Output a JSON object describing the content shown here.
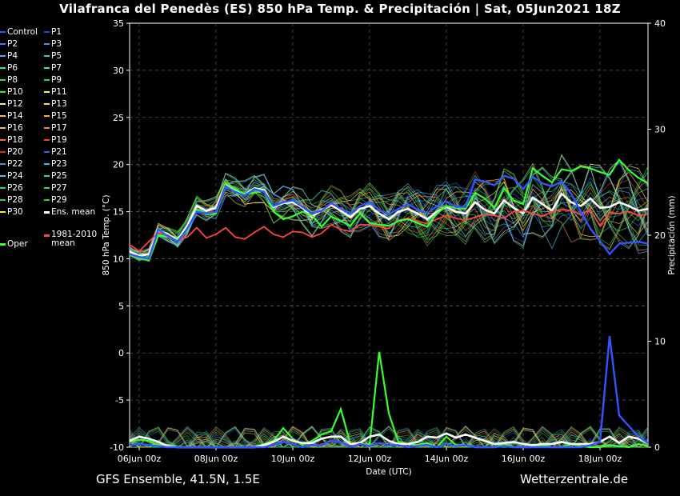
{
  "header": {
    "title": "Vilafranca del Penedès  (ES)  850 hPa Temp. & Precipitación | Sat, 05Jun2021 18Z"
  },
  "footer": {
    "model": "GFS Ensemble, 41.5N, 1.5E",
    "source": "Wetterzentrale.de"
  },
  "legend": [
    {
      "label": "Control",
      "color": "#3355ff"
    },
    {
      "label": "P1",
      "color": "#2244ee"
    },
    {
      "label": "P2",
      "color": "#4477ff"
    },
    {
      "label": "P3",
      "color": "#3399ff"
    },
    {
      "label": "P4",
      "color": "#44aaff"
    },
    {
      "label": "P5",
      "color": "#33ccdd"
    },
    {
      "label": "P6",
      "color": "#33ddbb"
    },
    {
      "label": "P7",
      "color": "#33ee99"
    },
    {
      "label": "P8",
      "color": "#33dd66"
    },
    {
      "label": "P9",
      "color": "#22dd33"
    },
    {
      "label": "P10",
      "color": "#33ee22"
    },
    {
      "label": "P11",
      "color": "#ffff44"
    },
    {
      "label": "P12",
      "color": "#ffee88"
    },
    {
      "label": "P13",
      "color": "#ffdd66"
    },
    {
      "label": "P14",
      "color": "#ffbb44"
    },
    {
      "label": "P15",
      "color": "#ffaa22"
    },
    {
      "label": "P16",
      "color": "#ffaa77"
    },
    {
      "label": "P17",
      "color": "#ff8844"
    },
    {
      "label": "P18",
      "color": "#ff6633"
    },
    {
      "label": "P19",
      "color": "#ee4422"
    },
    {
      "label": "P20",
      "color": "#dd3322"
    },
    {
      "label": "P21",
      "color": "#3366ee"
    },
    {
      "label": "P22",
      "color": "#3399ee"
    },
    {
      "label": "P23",
      "color": "#33bbff"
    },
    {
      "label": "P24",
      "color": "#44ccdd"
    },
    {
      "label": "P25",
      "color": "#33ddaa"
    },
    {
      "label": "P26",
      "color": "#33cc88"
    },
    {
      "label": "P27",
      "color": "#33dd66"
    },
    {
      "label": "P28",
      "color": "#33cc44"
    },
    {
      "label": "P29",
      "color": "#22dd22"
    },
    {
      "label": "P30",
      "color": "#ffee33"
    },
    {
      "label": "Ens. mean",
      "color": "#ffffff"
    },
    {
      "label": "Oper",
      "color": "#33ff33"
    },
    {
      "label": "1981-2010 mean",
      "color": "#ff4444"
    }
  ],
  "chart_data": {
    "type": "line",
    "title": "Vilafranca del Penedès  (ES)  850 hPa Temp. & Precipitación | Sat, 05Jun2021 18Z",
    "xlabel": "Date (UTC)",
    "ylabel": "850 hPa Temp. (°C)",
    "y2label": "Precipitación (mm)",
    "ylim": [
      -10,
      35
    ],
    "y2lim": [
      0,
      40
    ],
    "yticks": [
      "35",
      "30",
      "25",
      "20",
      "15",
      "10",
      "5",
      "0",
      "-5",
      "-10"
    ],
    "y2ticks": [
      "40",
      "30",
      "20",
      "10",
      "0"
    ],
    "xticks": [
      "06Jun 00z",
      "08Jun 00z",
      "10Jun 00z",
      "12Jun 00z",
      "14Jun 00z",
      "16Jun 00z",
      "18Jun 00z"
    ],
    "x_hours": [
      -6,
      0,
      6,
      12,
      18,
      24,
      30,
      36,
      42,
      48,
      54,
      60,
      66,
      72,
      78,
      84,
      90,
      96,
      102,
      108,
      114,
      120,
      126,
      132,
      138,
      144,
      150,
      156,
      162,
      168,
      174,
      180,
      186,
      192,
      198,
      204,
      210,
      216,
      222,
      228,
      234,
      240,
      246,
      252,
      258,
      264,
      270,
      276,
      282,
      288,
      294,
      300,
      306,
      312,
      318
    ],
    "grid": true,
    "series": [
      {
        "name": "Ens. mean",
        "axis": "temp",
        "values": [
          10.8,
          10.3,
          10.5,
          13.0,
          12.6,
          12.0,
          13.5,
          15.6,
          15.1,
          15.4,
          17.8,
          17.3,
          16.8,
          17.5,
          17.3,
          15.5,
          15.9,
          16.0,
          15.4,
          14.4,
          15.2,
          15.7,
          15.1,
          14.4,
          15.3,
          15.6,
          14.8,
          14.2,
          15.0,
          15.3,
          14.8,
          14.2,
          15.0,
          15.5,
          15.0,
          14.8,
          16.0,
          15.2,
          14.8,
          16.2,
          15.4,
          14.8,
          16.5,
          15.8,
          15.1,
          16.9,
          16.0,
          15.6,
          16.4,
          15.4,
          15.5,
          16.0,
          15.6,
          15.1,
          15.3
        ]
      },
      {
        "name": "1981-2010 mean",
        "axis": "temp",
        "values": [
          11.5,
          10.8,
          11.8,
          12.8,
          12.5,
          11.9,
          12.3,
          13.3,
          12.2,
          12.6,
          13.3,
          12.3,
          12.1,
          12.8,
          13.4,
          12.6,
          12.3,
          12.9,
          12.8,
          12.3,
          12.7,
          13.6,
          13.1,
          12.9,
          13.6,
          13.6,
          13.4,
          13.2,
          14.1,
          14.3,
          14.0,
          13.7,
          14.2,
          14.6,
          14.3,
          14.1,
          14.4,
          14.7,
          14.6,
          14.3,
          15.0,
          15.1,
          14.8,
          14.5,
          15.0,
          15.2,
          15.1,
          14.7,
          15.2,
          13.5,
          14.9,
          14.8,
          15.0,
          14.6,
          14.7
        ]
      },
      {
        "name": "Oper",
        "axis": "temp",
        "values": [
          10.4,
          10.1,
          9.8,
          12.5,
          12.3,
          12.0,
          13.0,
          15.2,
          14.7,
          14.8,
          18.0,
          17.4,
          16.9,
          17.0,
          17.2,
          15.0,
          14.2,
          14.5,
          15.0,
          14.6,
          13.4,
          14.5,
          14.0,
          13.5,
          14.8,
          13.8,
          13.6,
          13.5,
          14.0,
          14.2,
          13.8,
          13.4,
          14.8,
          15.6,
          15.4,
          15.3,
          17.0,
          16.4,
          15.4,
          17.5,
          16.2,
          15.8,
          19.6,
          18.8,
          18.1,
          19.5,
          19.3,
          19.8,
          19.6,
          19.2,
          18.9,
          20.5,
          19.4,
          18.6,
          18.0
        ]
      },
      {
        "name": "Control",
        "axis": "temp",
        "values": [
          10.5,
          10.2,
          10.0,
          13.1,
          12.4,
          11.8,
          13.2,
          15.0,
          14.8,
          15.0,
          17.7,
          17.1,
          16.7,
          17.4,
          17.1,
          15.6,
          16.0,
          16.2,
          15.5,
          14.8,
          15.1,
          15.9,
          15.3,
          14.8,
          15.6,
          16.0,
          15.2,
          14.7,
          15.3,
          15.8,
          15.2,
          14.8,
          15.6,
          16.1,
          15.5,
          15.5,
          18.4,
          18.2,
          17.8,
          18.8,
          18.5,
          17.4,
          18.7,
          18.0,
          17.7,
          18.2,
          16.9,
          15.0,
          13.2,
          11.9,
          10.5,
          11.6,
          11.7,
          11.8,
          11.6
        ]
      },
      {
        "name": "Oper",
        "axis": "precip",
        "values": [
          0.5,
          0.7,
          0.6,
          0.2,
          0.1,
          0.0,
          0.0,
          0.0,
          0.0,
          0.0,
          0.0,
          0.0,
          0.0,
          0.0,
          0.3,
          0.6,
          1.8,
          0.8,
          0.2,
          0.6,
          1.2,
          1.5,
          3.6,
          0.3,
          0.4,
          0.2,
          9.0,
          3.2,
          0.5,
          0.3,
          0.2,
          0.4,
          0.0,
          1.0,
          0.2,
          0.2,
          0.0,
          0.0,
          0.0,
          0.3,
          0.0,
          0.0,
          0.0,
          0.2,
          0.0,
          0.0,
          0.3,
          0.1,
          0.0,
          0.0,
          0.2,
          0.1,
          0.0,
          0.3,
          0.1
        ]
      },
      {
        "name": "Ens. mean",
        "axis": "precip",
        "values": [
          0.6,
          1.0,
          0.8,
          0.5,
          0.1,
          0.0,
          0.0,
          0.0,
          0.0,
          0.0,
          0.0,
          0.0,
          0.0,
          0.0,
          0.2,
          0.5,
          1.0,
          0.6,
          0.4,
          0.4,
          0.8,
          1.0,
          1.0,
          0.3,
          0.4,
          1.0,
          1.2,
          0.6,
          0.3,
          0.3,
          0.5,
          1.0,
          0.9,
          1.3,
          0.9,
          1.2,
          0.9,
          0.6,
          0.3,
          0.4,
          0.5,
          0.3,
          0.2,
          0.3,
          0.3,
          0.5,
          0.3,
          0.3,
          0.3,
          0.5,
          1.0,
          0.4,
          1.0,
          0.8,
          0.4
        ]
      },
      {
        "name": "Control",
        "axis": "precip",
        "values": [
          0.2,
          0.3,
          0.2,
          0.1,
          0.0,
          0.0,
          0.0,
          0.0,
          0.0,
          0.0,
          0.0,
          0.0,
          0.0,
          0.0,
          0.0,
          0.2,
          0.5,
          0.3,
          0.0,
          0.2,
          0.2,
          0.6,
          0.5,
          0.0,
          0.3,
          0.1,
          0.4,
          0.2,
          0.2,
          0.0,
          0.1,
          0.2,
          0.0,
          0.3,
          0.1,
          0.2,
          0.0,
          0.0,
          0.0,
          0.1,
          0.0,
          0.0,
          0.0,
          0.0,
          0.0,
          0.0,
          0.0,
          0.0,
          0.2,
          0.5,
          10.5,
          3.0,
          2.0,
          1.0,
          0.4
        ]
      }
    ]
  }
}
